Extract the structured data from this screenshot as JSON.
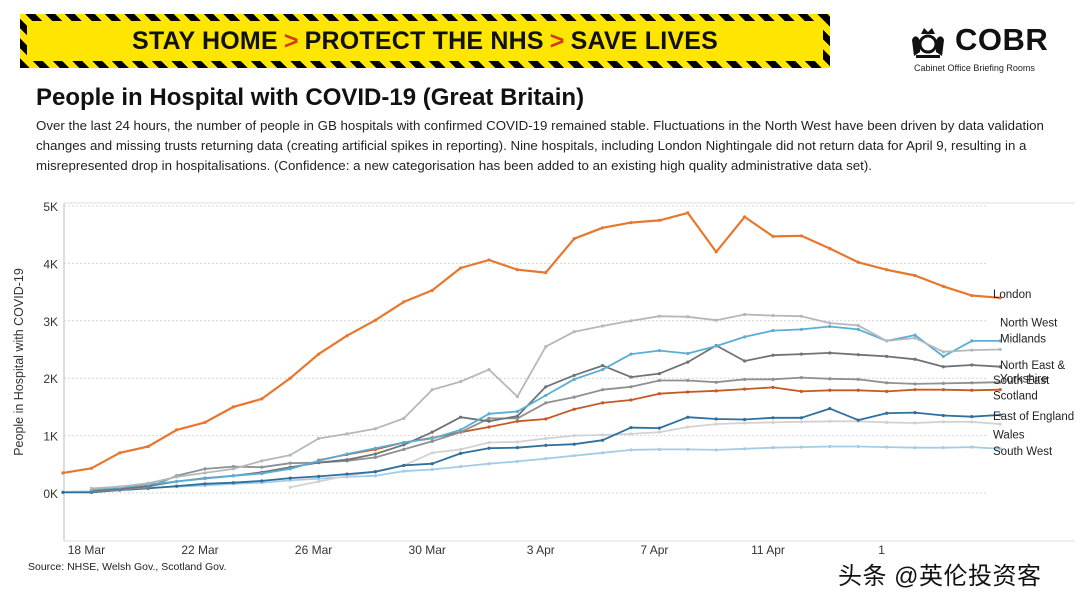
{
  "banner": {
    "part1": "STAY HOME",
    "part2": "PROTECT THE NHS",
    "part3": "SAVE LIVES",
    "separator": ">"
  },
  "logo": {
    "title": "COBR",
    "subtitle": "Cabinet Office Briefing Rooms",
    "icon": "royal-crest-icon"
  },
  "header": {
    "title": "People in Hospital with COVID-19 (Great Britain)",
    "description": "Over the last 24 hours, the number of people in GB hospitals with confirmed COVID-19 remained stable. Fluctuations in the North West have been driven by data validation changes and missing trusts returning data (creating artificial spikes in reporting). Nine hospitals, including London Nightingale did not return data for April 9, resulting in a misrepresented drop in hospitalisations. (Confidence: a new categorisation has been added to an existing high quality administrative data set)."
  },
  "footer": {
    "source": "Source: NHSE, Welsh Gov., Scotland Gov.",
    "watermark": "头条 @英伦投资客"
  },
  "chart_data": {
    "type": "line",
    "title": "People in Hospital with COVID-19 (Great Britain)",
    "xlabel": "",
    "ylabel": "People in Hospital with COVID-19",
    "ylim": [
      -800,
      5000
    ],
    "yticks": [
      0,
      1000,
      2000,
      3000,
      4000,
      5000
    ],
    "ytick_labels": [
      "0K",
      "1K",
      "2K",
      "3K",
      "4K",
      "5K"
    ],
    "grid": "horizontal",
    "categories": [
      "17 Mar",
      "18 Mar",
      "19 Mar",
      "20 Mar",
      "21 Mar",
      "22 Mar",
      "23 Mar",
      "24 Mar",
      "25 Mar",
      "26 Mar",
      "27 Mar",
      "28 Mar",
      "29 Mar",
      "30 Mar",
      "31 Mar",
      "1 Apr",
      "2 Apr",
      "3 Apr",
      "4 Apr",
      "5 Apr",
      "6 Apr",
      "7 Apr",
      "8 Apr",
      "9 Apr",
      "10 Apr",
      "11 Apr",
      "12 Apr",
      "13 Apr",
      "14 Apr",
      "15 Apr",
      "16 Apr",
      "17 Apr",
      "18 Apr",
      "19 Apr"
    ],
    "xtick_labels": [
      {
        "index": 1,
        "label": "18 Mar"
      },
      {
        "index": 5,
        "label": "22 Mar"
      },
      {
        "index": 9,
        "label": "26 Mar"
      },
      {
        "index": 13,
        "label": "30 Mar"
      },
      {
        "index": 17,
        "label": "3 Apr"
      },
      {
        "index": 21,
        "label": "7 Apr"
      },
      {
        "index": 25,
        "label": "11 Apr"
      },
      {
        "index": 29,
        "label": "1"
      }
    ],
    "series": [
      {
        "name": "London",
        "color": "#e8772e",
        "width": 2.2,
        "values": [
          350,
          430,
          700,
          810,
          1100,
          1230,
          1500,
          1640,
          2000,
          2420,
          2740,
          3010,
          3330,
          3530,
          3920,
          4060,
          3890,
          3840,
          4430,
          4620,
          4710,
          4750,
          4880,
          4200,
          4810,
          4470,
          4480,
          4260,
          4020,
          3890,
          3790,
          3600,
          3440,
          3400
        ]
      },
      {
        "name": "North West",
        "color": "#b5b8bb",
        "width": 1.8,
        "values": [
          null,
          80,
          110,
          170,
          280,
          350,
          420,
          560,
          660,
          950,
          1030,
          1120,
          1300,
          1800,
          1940,
          2150,
          1680,
          2550,
          2810,
          2910,
          3000,
          3080,
          3070,
          3010,
          3110,
          3090,
          3080,
          2960,
          2920,
          2650,
          2700,
          2460,
          2490,
          2500
        ]
      },
      {
        "name": "Midlands",
        "color": "#5aaed6",
        "width": 1.8,
        "values": [
          null,
          60,
          100,
          150,
          200,
          250,
          300,
          340,
          420,
          560,
          680,
          780,
          880,
          950,
          1100,
          1380,
          1420,
          1700,
          1980,
          2150,
          2420,
          2480,
          2430,
          2560,
          2720,
          2830,
          2850,
          2900,
          2850,
          2650,
          2750,
          2380,
          2650,
          2650
        ]
      },
      {
        "name": "North East & Yorkshire",
        "color": "#6f7378",
        "width": 1.8,
        "values": [
          null,
          40,
          70,
          120,
          200,
          260,
          300,
          360,
          450,
          530,
          580,
          680,
          840,
          1060,
          1320,
          1250,
          1340,
          1850,
          2050,
          2220,
          2020,
          2080,
          2280,
          2570,
          2300,
          2400,
          2420,
          2440,
          2410,
          2380,
          2330,
          2200,
          2230,
          2200
        ]
      },
      {
        "name": "South East",
        "color": "#8d9094",
        "width": 1.8,
        "values": [
          null,
          30,
          60,
          100,
          300,
          420,
          460,
          450,
          520,
          530,
          560,
          620,
          760,
          900,
          1060,
          1300,
          1300,
          1570,
          1670,
          1800,
          1850,
          1960,
          1960,
          1930,
          1980,
          1980,
          2010,
          1990,
          1980,
          1920,
          1900,
          1910,
          1920,
          1930
        ]
      },
      {
        "name": "Scotland",
        "color": "#c25a23",
        "width": 1.8,
        "values": [
          null,
          null,
          null,
          null,
          null,
          null,
          null,
          null,
          null,
          570,
          670,
          760,
          880,
          960,
          1060,
          1150,
          1250,
          1290,
          1460,
          1570,
          1620,
          1730,
          1760,
          1780,
          1810,
          1840,
          1770,
          1790,
          1790,
          1770,
          1800,
          1800,
          1790,
          1800
        ]
      },
      {
        "name": "East of England",
        "color": "#2e6f9e",
        "width": 1.8,
        "values": [
          10,
          10,
          50,
          80,
          120,
          160,
          180,
          210,
          260,
          290,
          330,
          370,
          480,
          510,
          690,
          780,
          790,
          830,
          850,
          920,
          1140,
          1130,
          1320,
          1290,
          1280,
          1310,
          1310,
          1470,
          1270,
          1390,
          1400,
          1350,
          1330,
          1360
        ]
      },
      {
        "name": "Wales",
        "color": "#d0d2d4",
        "width": 1.8,
        "values": [
          null,
          null,
          null,
          null,
          null,
          null,
          null,
          null,
          100,
          200,
          300,
          380,
          480,
          700,
          760,
          880,
          890,
          950,
          1000,
          1010,
          1030,
          1060,
          1150,
          1200,
          1220,
          1230,
          1240,
          1250,
          1250,
          1230,
          1220,
          1240,
          1240,
          1200
        ]
      },
      {
        "name": "South West",
        "color": "#a3cde6",
        "width": 1.8,
        "values": [
          20,
          30,
          60,
          90,
          110,
          130,
          160,
          180,
          220,
          250,
          280,
          300,
          380,
          410,
          460,
          510,
          550,
          600,
          650,
          700,
          750,
          760,
          760,
          750,
          770,
          790,
          800,
          810,
          810,
          800,
          790,
          790,
          800,
          770
        ]
      }
    ],
    "legend": [
      {
        "series": "London",
        "lines": [
          "London"
        ],
        "y": 3400
      },
      {
        "series": "North West",
        "lines": [
          "North West"
        ],
        "y": 2900
      },
      {
        "series": "Midlands",
        "lines": [
          "Midlands"
        ],
        "y": 2620
      },
      {
        "series": "North East & Yorkshire",
        "lines": [
          "North East &",
          "Yorkshire"
        ],
        "y": 2160
      },
      {
        "series": "South East",
        "lines": [
          "South East"
        ],
        "y": 1900
      },
      {
        "series": "Scotland",
        "lines": [
          "Scotland"
        ],
        "y": 1630
      },
      {
        "series": "East of England",
        "lines": [
          "East of England"
        ],
        "y": 1270
      },
      {
        "series": "Wales",
        "lines": [
          "Wales"
        ],
        "y": 950
      },
      {
        "series": "South West",
        "lines": [
          "South West"
        ],
        "y": 660
      }
    ]
  }
}
